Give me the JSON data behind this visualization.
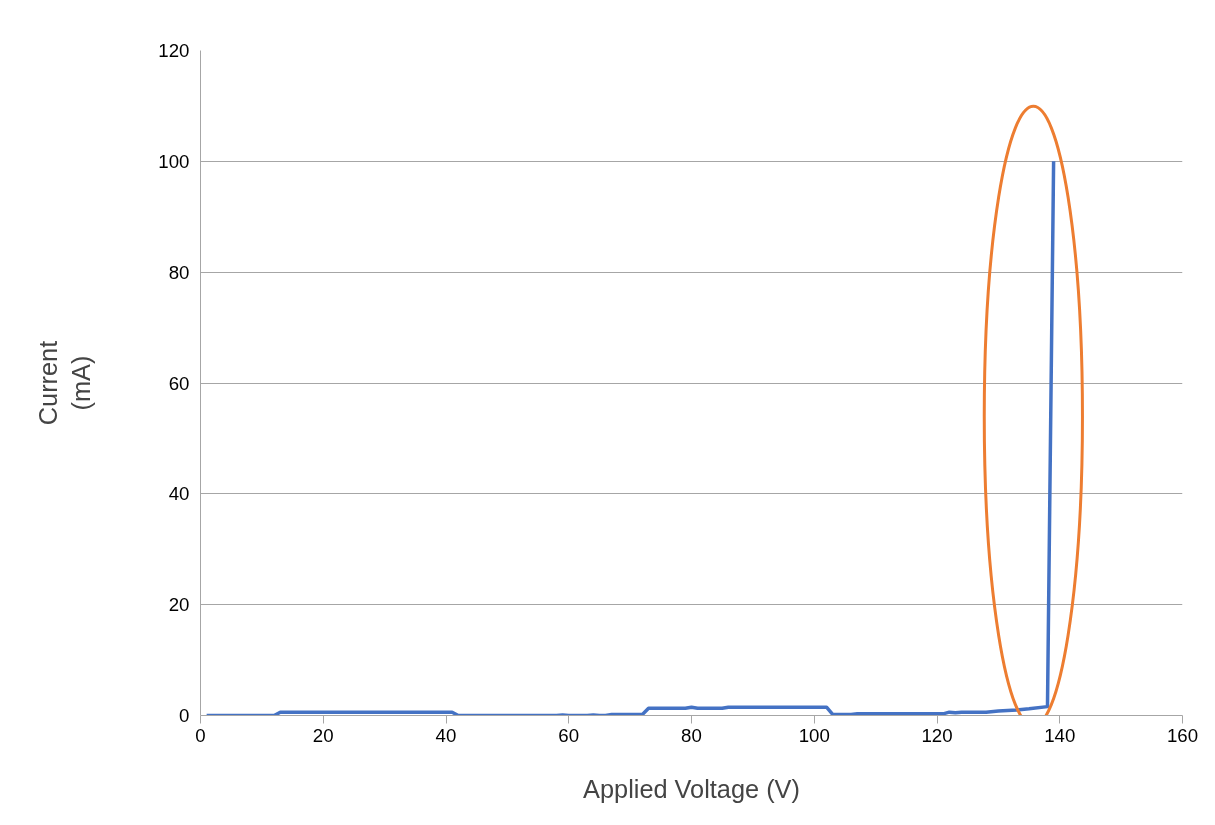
{
  "chart_data": {
    "type": "line",
    "xlabel": "Applied Voltage (V)",
    "ylabel": "Current\n(mA)",
    "x": [
      1,
      12,
      13,
      41,
      42,
      58,
      59,
      60,
      63,
      64,
      65,
      66,
      67,
      72,
      73,
      79,
      80,
      81,
      85,
      86,
      102,
      103,
      106,
      107,
      121,
      122,
      123,
      124,
      128,
      130,
      133,
      135,
      138,
      139
    ],
    "series": [
      {
        "color": "#4472c4",
        "values": [
          0,
          0,
          0.6,
          0.6,
          0,
          0,
          0.1,
          0,
          0,
          0.1,
          0,
          0,
          0.2,
          0.2,
          1.3,
          1.3,
          1.5,
          1.3,
          1.3,
          1.5,
          1.5,
          0.2,
          0.2,
          0.3,
          0.3,
          0.6,
          0.5,
          0.6,
          0.6,
          0.8,
          1.0,
          1.2,
          1.6,
          100
        ]
      }
    ],
    "xlim": [
      0,
      160
    ],
    "xticks": [
      0,
      20,
      40,
      60,
      80,
      100,
      120,
      140,
      160
    ],
    "ylim": [
      0,
      120
    ],
    "yticks": [
      0,
      20,
      40,
      60,
      80,
      100,
      120
    ],
    "grid": "y",
    "marker": "none",
    "line_style": "solid"
  }
}
